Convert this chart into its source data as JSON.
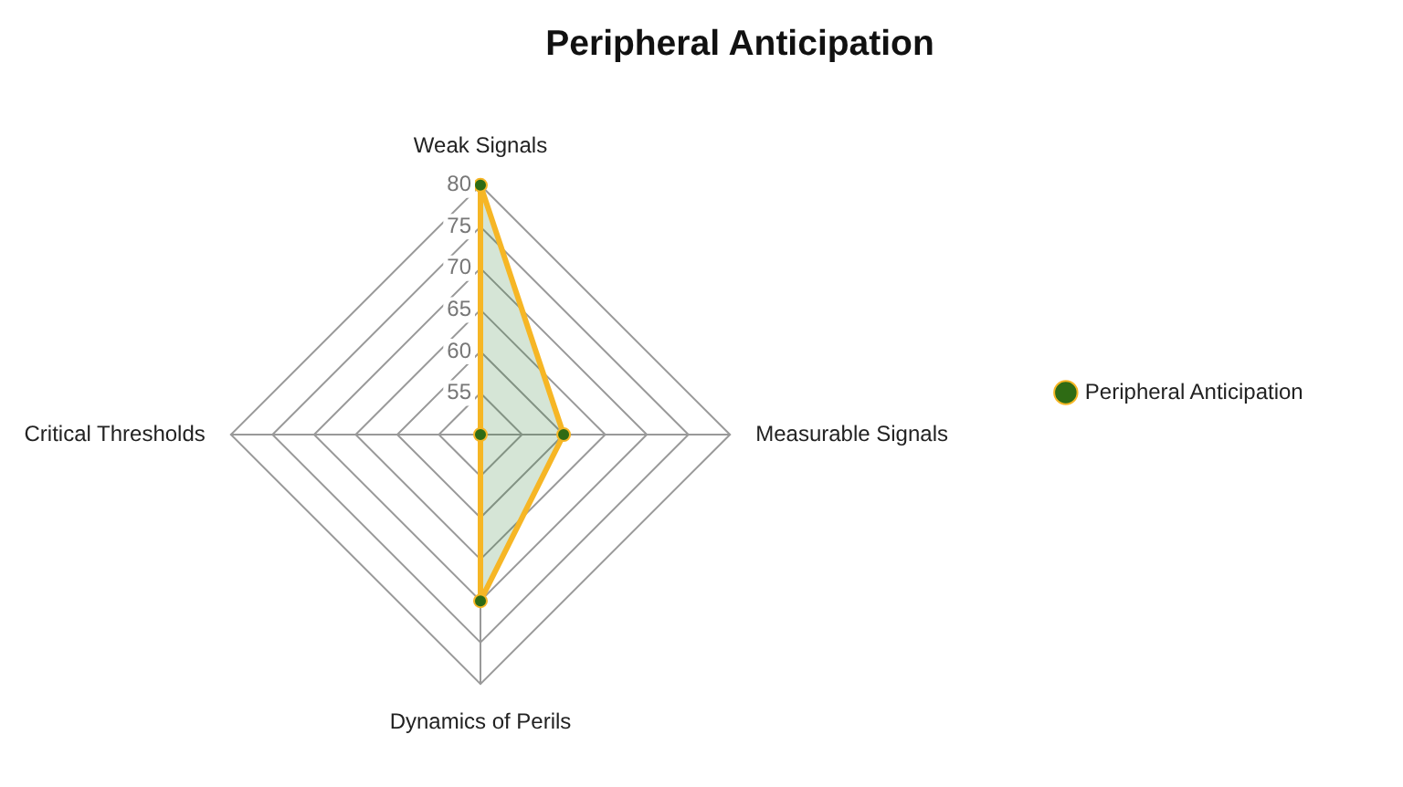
{
  "chart_data": {
    "type": "radar",
    "title": "Peripheral Anticipation",
    "categories": [
      "Weak Signals",
      "Measurable Signals",
      "Dynamics of Perils",
      "Critical Thresholds"
    ],
    "series": [
      {
        "name": "Peripheral Anticipation",
        "color": "#f6b625",
        "values": [
          80,
          60,
          70,
          50
        ]
      }
    ],
    "ylim": [
      50,
      80
    ],
    "yticks": [
      55,
      60,
      65,
      70,
      75,
      80
    ],
    "grid": true,
    "legend": "right",
    "marker": "circle"
  }
}
